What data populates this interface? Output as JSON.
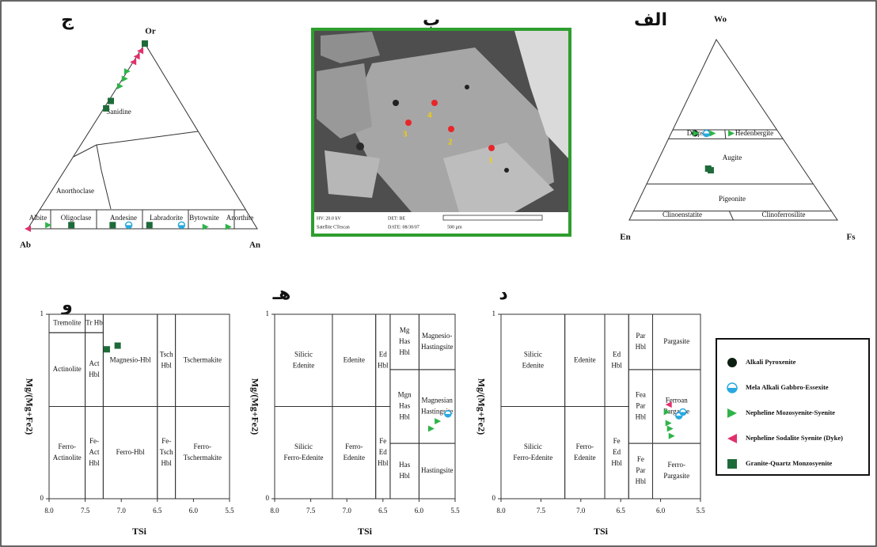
{
  "feldspar_ternary": {
    "label": "ج",
    "apices": [
      "Or",
      "Ab",
      "An"
    ],
    "fields": [
      "Sanidine",
      "Anorthoclase",
      "Albite",
      "Oligoclase",
      "Andesine",
      "Labradorite",
      "Bytownite",
      "Anorthite"
    ],
    "series": [
      {
        "name": "Granite-Quartz Monzosyenite",
        "points": [
          [
            1,
            0,
            0
          ],
          [
            0.69,
            0.3,
            0.01
          ],
          [
            0.65,
            0.34,
            0.01
          ],
          [
            0.02,
            0.8,
            0.18
          ],
          [
            0.02,
            0.62,
            0.36
          ],
          [
            0.02,
            0.46,
            0.52
          ]
        ]
      },
      {
        "name": "Nepheline Sodalite Syenite (Dyke)",
        "points": [
          [
            0.96,
            0.04,
            0
          ],
          [
            0.93,
            0.07,
            0
          ],
          [
            0.9,
            0.1,
            0
          ],
          [
            0,
            1,
            0
          ]
        ]
      },
      {
        "name": "Nepheline Mozosyenite-Syenite",
        "points": [
          [
            0.85,
            0.15,
            0
          ],
          [
            0.81,
            0.18,
            0.01
          ],
          [
            0.77,
            0.22,
            0.01
          ],
          [
            0.02,
            0.9,
            0.08
          ],
          [
            0.01,
            0.22,
            0.77
          ],
          [
            0.01,
            0.12,
            0.87
          ]
        ]
      },
      {
        "name": "Mela Alkali Gabbro-Essexite",
        "points": [
          [
            0.02,
            0.55,
            0.43
          ],
          [
            0.02,
            0.32,
            0.66
          ]
        ]
      }
    ]
  },
  "sem_image": {
    "label": "ب",
    "spot_labels": [
      "1",
      "2",
      "3",
      "4"
    ],
    "caption": [
      "HV: 20.0 kV",
      "DET: BE",
      "Satellite CTescan",
      "DATE: 08/30/07",
      "500 µm"
    ]
  },
  "pyroxene_ternary": {
    "label": "الف",
    "apices": [
      "Wo",
      "En",
      "Fs"
    ],
    "fields": [
      "Diopside",
      "Hedenbergite",
      "Augite",
      "Pigeonite",
      "Clinoenstatite",
      "Clinoferrosilite"
    ],
    "series": [
      {
        "name": "Alkali Pyroxenite",
        "points": [
          [
            0.48,
            0.405,
            0.115
          ]
        ]
      },
      {
        "name": "Mela Alkali Gabbro-Essexite",
        "points": [
          [
            0.48,
            0.35,
            0.17
          ]
        ]
      },
      {
        "name": "Nepheline Mozosyenite-Syenite",
        "points": [
          [
            0.48,
            0.32,
            0.2
          ],
          [
            0.48,
            0.23,
            0.29
          ],
          [
            0.48,
            0.4,
            0.12
          ]
        ]
      },
      {
        "name": "Granite-Quartz Monzosyenite",
        "points": [
          [
            0.285,
            0.455,
            0.26
          ],
          [
            0.276,
            0.448,
            0.276
          ]
        ]
      }
    ]
  },
  "chart_data": [
    {
      "type": "scatter",
      "title": "و",
      "x_label": "TSi",
      "y_label": "Mg/(Mg+Fe2)",
      "xlim": [
        8,
        5.5
      ],
      "ylim": [
        0,
        1
      ],
      "xticks": [
        {
          "value": 8,
          "label": "8.0"
        },
        7.5,
        {
          "value": 7,
          "label": "7.0"
        },
        6.5,
        {
          "value": 6,
          "label": "6.0"
        },
        5.5
      ],
      "yticks": [
        0,
        1
      ],
      "fields": [
        {
          "label": [
            "Tremolite"
          ],
          "x": [
            8,
            7.5
          ],
          "y": [
            0.9,
            1
          ]
        },
        {
          "label": [
            "Tr Hb"
          ],
          "x": [
            7.5,
            7.25
          ],
          "y": [
            0.9,
            1
          ]
        },
        {
          "label": [
            "Actinolite"
          ],
          "x": [
            8,
            7.5
          ],
          "y": [
            0.5,
            0.9
          ]
        },
        {
          "label": [
            "Act",
            "Hbl"
          ],
          "x": [
            7.5,
            7.25
          ],
          "y": [
            0.5,
            0.9
          ]
        },
        {
          "label": [
            "Magnesio-Hbl"
          ],
          "x": [
            7.25,
            6.5
          ],
          "y": [
            0.5,
            1
          ]
        },
        {
          "label": [
            "Tsch",
            "Hbl"
          ],
          "x": [
            6.5,
            6.25
          ],
          "y": [
            0.5,
            1
          ]
        },
        {
          "label": [
            "Tschermakite"
          ],
          "x": [
            6.25,
            5.5
          ],
          "y": [
            0.5,
            1
          ]
        },
        {
          "label": [
            "Ferro-",
            "Actinolite"
          ],
          "x": [
            8,
            7.5
          ],
          "y": [
            0,
            0.5
          ]
        },
        {
          "label": [
            "Fe-",
            "Act",
            "Hbl"
          ],
          "x": [
            7.5,
            7.25
          ],
          "y": [
            0,
            0.5
          ]
        },
        {
          "label": [
            "Ferro-Hbl"
          ],
          "x": [
            7.25,
            6.5
          ],
          "y": [
            0,
            0.5
          ]
        },
        {
          "label": [
            "Fe-",
            "Tsch",
            "Hbl"
          ],
          "x": [
            6.5,
            6.25
          ],
          "y": [
            0,
            0.5
          ]
        },
        {
          "label": [
            "Ferro-",
            "Tschermakite"
          ],
          "x": [
            6.25,
            5.5
          ],
          "y": [
            0,
            0.5
          ]
        }
      ],
      "series": [
        {
          "name": "Granite-Quartz Monzosyenite",
          "x": [
            7.2,
            7.05
          ],
          "values": [
            0.81,
            0.83
          ]
        }
      ]
    },
    {
      "type": "scatter",
      "title": "هـ",
      "x_label": "TSi",
      "y_label": "Mg/(Mg+Fe2)",
      "xlim": [
        8,
        5.5
      ],
      "ylim": [
        0,
        1
      ],
      "xticks": [
        {
          "value": 8,
          "label": "8.0"
        },
        7.5,
        {
          "value": 7,
          "label": "7.0"
        },
        6.5,
        {
          "value": 6,
          "label": "6.0"
        },
        5.5
      ],
      "yticks": [
        0,
        1
      ],
      "fields": [
        {
          "label": [
            "Silicic",
            "Edenite"
          ],
          "x": [
            8,
            7.2
          ],
          "y": [
            0.5,
            1
          ]
        },
        {
          "label": [
            "Edenite"
          ],
          "x": [
            7.2,
            6.6
          ],
          "y": [
            0.5,
            1
          ]
        },
        {
          "label": [
            "Ed",
            "Hbl"
          ],
          "x": [
            6.6,
            6.4
          ],
          "y": [
            0.5,
            1
          ]
        },
        {
          "label": [
            "Mg",
            "Has",
            "Hbl"
          ],
          "x": [
            6.4,
            6.0
          ],
          "y": [
            0.7,
            1
          ]
        },
        {
          "label": [
            "Magnesio-",
            "Hastingsite"
          ],
          "x": [
            6.0,
            5.5
          ],
          "y": [
            0.7,
            1
          ]
        },
        {
          "label": [
            "Mgn",
            "Has",
            "Hbl"
          ],
          "x": [
            6.4,
            6.0
          ],
          "y": [
            0.3,
            0.7
          ]
        },
        {
          "label": [
            "Magnesian",
            "Hastingsite"
          ],
          "x": [
            6.0,
            5.5
          ],
          "y": [
            0.3,
            0.7
          ]
        },
        {
          "label": [
            "Silicic",
            "Ferro-Edenite"
          ],
          "x": [
            8,
            7.2
          ],
          "y": [
            0,
            0.5
          ]
        },
        {
          "label": [
            "Ferro-",
            "Edenite"
          ],
          "x": [
            7.2,
            6.6
          ],
          "y": [
            0,
            0.5
          ]
        },
        {
          "label": [
            "Fe",
            "Ed",
            "Hbl"
          ],
          "x": [
            6.6,
            6.4
          ],
          "y": [
            0,
            0.5
          ]
        },
        {
          "label": [
            "Has",
            "Hbl"
          ],
          "x": [
            6.4,
            6.0
          ],
          "y": [
            0,
            0.3
          ]
        },
        {
          "label": [
            "Hastingsite"
          ],
          "x": [
            6.0,
            5.5
          ],
          "y": [
            0,
            0.3
          ]
        }
      ],
      "series": [
        {
          "name": "Nepheline Mozosyenite-Syenite",
          "x": [
            5.83,
            5.74
          ],
          "values": [
            0.38,
            0.42
          ]
        },
        {
          "name": "Mela Alkali Gabbro-Essexite",
          "x": [
            5.6
          ],
          "values": [
            0.46
          ]
        }
      ]
    },
    {
      "type": "scatter",
      "title": "د",
      "x_label": "TSi",
      "y_label": "Mg/(Mg+Fe2)",
      "xlim": [
        8,
        5.5
      ],
      "ylim": [
        0,
        1
      ],
      "xticks": [
        {
          "value": 8,
          "label": "8.0"
        },
        7.5,
        {
          "value": 7,
          "label": "7.0"
        },
        6.5,
        {
          "value": 6,
          "label": "6.0"
        },
        5.5
      ],
      "yticks": [
        0,
        1
      ],
      "fields": [
        {
          "label": [
            "Silicic",
            "Edenite"
          ],
          "x": [
            8,
            7.2
          ],
          "y": [
            0.5,
            1
          ]
        },
        {
          "label": [
            "Edenite"
          ],
          "x": [
            7.2,
            6.7
          ],
          "y": [
            0.5,
            1
          ]
        },
        {
          "label": [
            "Ed",
            "Hbl"
          ],
          "x": [
            6.7,
            6.4
          ],
          "y": [
            0.5,
            1
          ]
        },
        {
          "label": [
            "Par",
            "Hbl"
          ],
          "x": [
            6.4,
            6.1
          ],
          "y": [
            0.7,
            1
          ]
        },
        {
          "label": [
            "Pargasite"
          ],
          "x": [
            6.1,
            5.5
          ],
          "y": [
            0.7,
            1
          ]
        },
        {
          "label": [
            "Fea",
            "Par",
            "Hbl"
          ],
          "x": [
            6.4,
            6.1
          ],
          "y": [
            0.3,
            0.7
          ]
        },
        {
          "label": [
            "Ferroan",
            "Pargasite"
          ],
          "x": [
            6.1,
            5.5
          ],
          "y": [
            0.3,
            0.7
          ]
        },
        {
          "label": [
            "Silicic",
            "Ferro-Edenite"
          ],
          "x": [
            8,
            7.2
          ],
          "y": [
            0,
            0.5
          ]
        },
        {
          "label": [
            "Ferro-",
            "Edenite"
          ],
          "x": [
            7.2,
            6.7
          ],
          "y": [
            0,
            0.5
          ]
        },
        {
          "label": [
            "Fe",
            "Ed",
            "Hbl"
          ],
          "x": [
            6.7,
            6.4
          ],
          "y": [
            0,
            0.5
          ]
        },
        {
          "label": [
            "Fe",
            "Par",
            "Hbl"
          ],
          "x": [
            6.4,
            6.1
          ],
          "y": [
            0,
            0.3
          ]
        },
        {
          "label": [
            "Ferro-",
            "Pargasite"
          ],
          "x": [
            6.1,
            5.5
          ],
          "y": [
            0,
            0.3
          ]
        }
      ],
      "series": [
        {
          "name": "Nepheline Sodalite Syenite (Dyke)",
          "x": [
            5.9
          ],
          "values": [
            0.51
          ]
        },
        {
          "name": "Mela Alkali Gabbro-Essexite",
          "x": [
            5.77,
            5.72
          ],
          "values": [
            0.45,
            0.47
          ]
        },
        {
          "name": "Nepheline Mozosyenite-Syenite",
          "x": [
            5.92,
            5.9,
            5.88,
            5.86
          ],
          "values": [
            0.47,
            0.41,
            0.38,
            0.34
          ]
        }
      ]
    }
  ],
  "legend": {
    "items": [
      {
        "name": "Alkali Pyroxenite",
        "color": "#0d1f12",
        "marker": "circle"
      },
      {
        "name": "Mela Alkali Gabbro-Essexite",
        "color": "#29a9e0",
        "marker": "half-circle"
      },
      {
        "name": "Nepheline Mozosyenite-Syenite",
        "color": "#2fb34a",
        "marker": "triangle-right"
      },
      {
        "name": "Nepheline Sodalite Syenite (Dyke)",
        "color": "#e2306a",
        "marker": "triangle-left"
      },
      {
        "name": "Granite-Quartz Monzosyenite",
        "color": "#1e6b3a",
        "marker": "square"
      }
    ]
  }
}
